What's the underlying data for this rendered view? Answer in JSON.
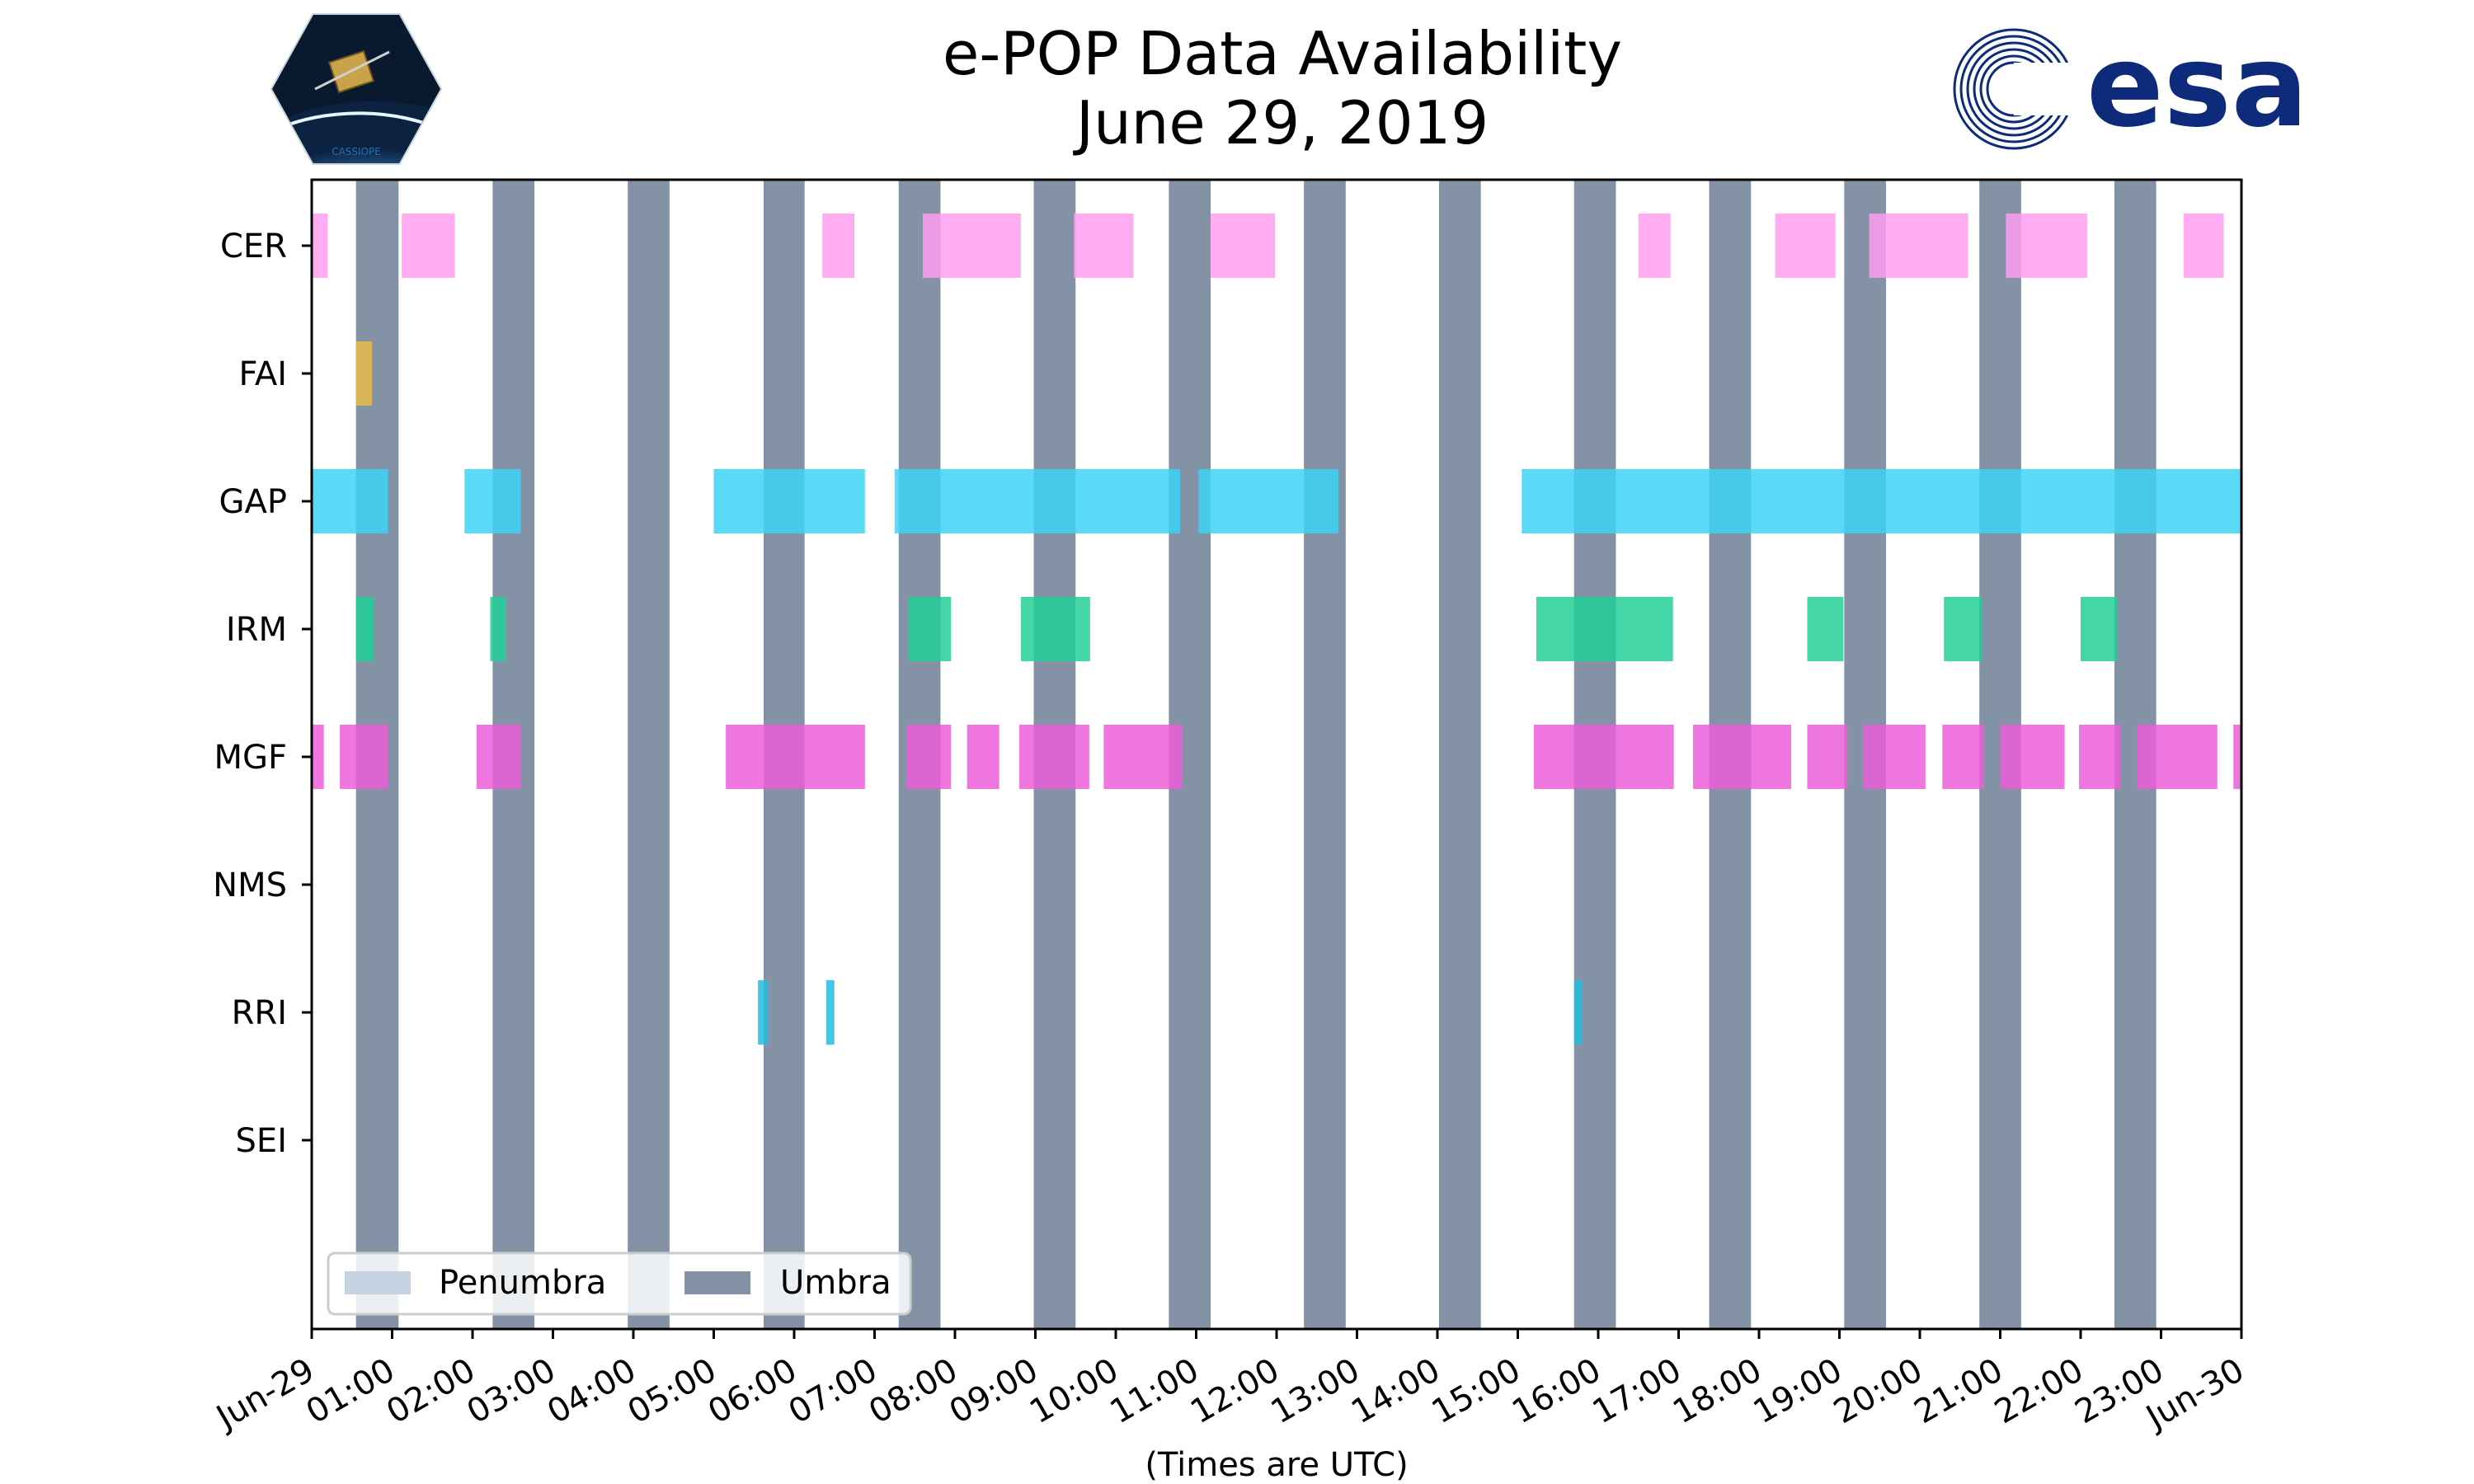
{
  "title": {
    "line1": "e-POP Data Availability",
    "line2": "June 29, 2019"
  },
  "logos": {
    "left": {
      "name": "cassiope-mission-logo",
      "text": "CASSIOPE"
    },
    "right": {
      "name": "esa-logo",
      "text": "esa",
      "color": "#0d2a7b"
    }
  },
  "chart_data": {
    "type": "timeline",
    "xlabel": "(Times are UTC)",
    "xlim_hours": [
      0,
      24
    ],
    "xtick_labels": [
      "Jun-29",
      "01:00",
      "02:00",
      "03:00",
      "04:00",
      "05:00",
      "06:00",
      "07:00",
      "08:00",
      "09:00",
      "10:00",
      "11:00",
      "12:00",
      "13:00",
      "14:00",
      "15:00",
      "16:00",
      "17:00",
      "18:00",
      "19:00",
      "20:00",
      "21:00",
      "22:00",
      "23:00",
      "Jun-30"
    ],
    "instruments": [
      "CER",
      "FAI",
      "GAP",
      "IRM",
      "MGF",
      "NMS",
      "RRI",
      "SEI"
    ],
    "legend": {
      "placement": "lower-left",
      "entries": [
        {
          "label": "Penumbra",
          "color": "#c6d3e2"
        },
        {
          "label": "Umbra",
          "color": "#8393a5"
        }
      ]
    },
    "umbra_hours": [
      [
        0.55,
        1.08
      ],
      [
        2.25,
        2.77
      ],
      [
        3.93,
        4.45
      ],
      [
        5.62,
        6.13
      ],
      [
        7.3,
        7.82
      ],
      [
        8.98,
        9.5
      ],
      [
        10.66,
        11.18
      ],
      [
        12.34,
        12.86
      ],
      [
        14.02,
        14.54
      ],
      [
        15.7,
        16.22
      ],
      [
        17.38,
        17.9
      ],
      [
        19.06,
        19.58
      ],
      [
        20.74,
        21.26
      ],
      [
        22.42,
        22.94
      ]
    ],
    "series": [
      {
        "name": "CER",
        "color": "#ff9ef0",
        "intervals": [
          [
            0,
            0.2
          ],
          [
            1.12,
            1.78
          ],
          [
            6.35,
            6.75
          ],
          [
            7.6,
            8.82
          ],
          [
            9.48,
            10.22
          ],
          [
            11.18,
            11.98
          ],
          [
            16.5,
            16.9
          ],
          [
            18.2,
            18.95
          ],
          [
            19.37,
            20.6
          ],
          [
            21.07,
            22.08
          ],
          [
            23.28,
            23.78
          ]
        ]
      },
      {
        "name": "FAI",
        "color": "#e8b84a",
        "intervals": [
          [
            0.55,
            0.75
          ]
        ]
      },
      {
        "name": "GAP",
        "color": "#3dd4f6",
        "intervals": [
          [
            0,
            0.95
          ],
          [
            1.9,
            2.6
          ],
          [
            5.0,
            6.88
          ],
          [
            7.25,
            10.8
          ],
          [
            11.03,
            12.77
          ],
          [
            15.05,
            24.0
          ]
        ]
      },
      {
        "name": "IRM",
        "color": "#23cf98",
        "intervals": [
          [
            0.55,
            0.77
          ],
          [
            2.22,
            2.42
          ],
          [
            7.42,
            7.95
          ],
          [
            8.82,
            9.68
          ],
          [
            15.23,
            16.93
          ],
          [
            18.6,
            19.05
          ],
          [
            20.3,
            20.78
          ],
          [
            22.0,
            22.45
          ]
        ]
      },
      {
        "name": "MGF",
        "color": "#ec5ed8",
        "intervals": [
          [
            0,
            0.15
          ],
          [
            0.35,
            0.95
          ],
          [
            2.05,
            2.6
          ],
          [
            5.15,
            6.88
          ],
          [
            7.4,
            7.95
          ],
          [
            8.15,
            8.55
          ],
          [
            8.8,
            9.67
          ],
          [
            9.85,
            10.82
          ],
          [
            15.2,
            16.94
          ],
          [
            17.18,
            18.4
          ],
          [
            18.6,
            19.1
          ],
          [
            19.3,
            20.07
          ],
          [
            20.28,
            20.8
          ],
          [
            21.0,
            21.8
          ],
          [
            21.98,
            22.5
          ],
          [
            22.7,
            23.7
          ],
          [
            23.9,
            24.0
          ]
        ]
      },
      {
        "name": "NMS",
        "color": "#e76f51",
        "intervals": []
      },
      {
        "name": "RRI",
        "color": "#22bde0",
        "intervals": [
          [
            5.55,
            5.67
          ],
          [
            6.4,
            6.5
          ],
          [
            15.7,
            15.8
          ]
        ]
      },
      {
        "name": "SEI",
        "color": "#9b5de5",
        "intervals": []
      }
    ]
  }
}
